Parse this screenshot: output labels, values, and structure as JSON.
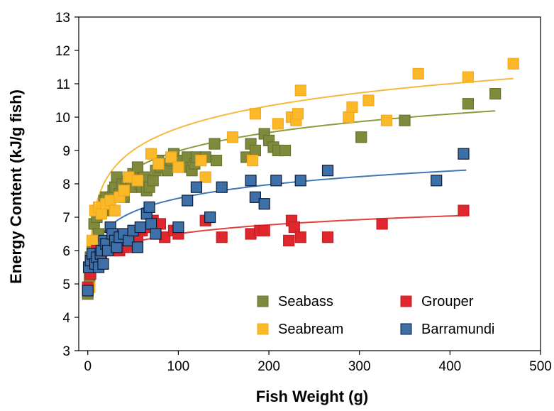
{
  "chart_data": {
    "type": "scatter",
    "xlabel": "Fish Weight (g)",
    "ylabel": "Energy Content (kJ/g fish)",
    "xlim": [
      -10,
      500
    ],
    "ylim": [
      3,
      13
    ],
    "xticks": [
      "0",
      "100",
      "200",
      "300",
      "400",
      "500"
    ],
    "yticks": [
      "3",
      "4",
      "5",
      "6",
      "7",
      "8",
      "9",
      "10",
      "11",
      "12",
      "13"
    ],
    "grid": false,
    "legend_position": "bottom-right",
    "series": [
      {
        "name": "Seabass",
        "color": "#808a3c",
        "edge": "#6a722e",
        "points": [
          [
            0,
            4.7
          ],
          [
            2,
            5.2
          ],
          [
            3,
            5.8
          ],
          [
            5,
            6.2
          ],
          [
            7,
            6.8
          ],
          [
            10,
            7.0
          ],
          [
            12,
            6.5
          ],
          [
            15,
            7.2
          ],
          [
            18,
            7.5
          ],
          [
            20,
            7.6
          ],
          [
            22,
            7.3
          ],
          [
            25,
            7.6
          ],
          [
            27,
            7.2
          ],
          [
            28,
            7.8
          ],
          [
            30,
            7.9
          ],
          [
            32,
            8.2
          ],
          [
            35,
            7.7
          ],
          [
            38,
            8.0
          ],
          [
            40,
            7.6
          ],
          [
            42,
            8.0
          ],
          [
            45,
            8.1
          ],
          [
            48,
            7.9
          ],
          [
            50,
            8.3
          ],
          [
            55,
            8.5
          ],
          [
            58,
            8.0
          ],
          [
            60,
            7.9
          ],
          [
            62,
            8.2
          ],
          [
            65,
            7.8
          ],
          [
            68,
            7.9
          ],
          [
            72,
            8.1
          ],
          [
            75,
            8.4
          ],
          [
            78,
            8.7
          ],
          [
            80,
            8.5
          ],
          [
            85,
            8.6
          ],
          [
            88,
            8.4
          ],
          [
            92,
            8.7
          ],
          [
            95,
            8.9
          ],
          [
            100,
            8.7
          ],
          [
            105,
            8.5
          ],
          [
            110,
            8.8
          ],
          [
            115,
            8.4
          ],
          [
            118,
            8.6
          ],
          [
            120,
            8.8
          ],
          [
            130,
            8.8
          ],
          [
            140,
            9.2
          ],
          [
            142,
            8.7
          ],
          [
            175,
            8.8
          ],
          [
            180,
            9.2
          ],
          [
            185,
            9.0
          ],
          [
            195,
            9.5
          ],
          [
            200,
            9.3
          ],
          [
            205,
            9.1
          ],
          [
            210,
            9.0
          ],
          [
            218,
            9.0
          ],
          [
            302,
            9.4
          ],
          [
            350,
            9.9
          ],
          [
            420,
            10.4
          ],
          [
            450,
            10.7
          ]
        ]
      },
      {
        "name": "Seabream",
        "color": "#fbb829",
        "edge": "#f4a81d",
        "points": [
          [
            2,
            4.9
          ],
          [
            5,
            6.3
          ],
          [
            8,
            7.2
          ],
          [
            12,
            7.3
          ],
          [
            15,
            7.1
          ],
          [
            20,
            7.4
          ],
          [
            25,
            7.5
          ],
          [
            30,
            7.2
          ],
          [
            35,
            7.6
          ],
          [
            40,
            7.8
          ],
          [
            45,
            8.2
          ],
          [
            55,
            8.1
          ],
          [
            70,
            8.9
          ],
          [
            78,
            8.6
          ],
          [
            92,
            8.8
          ],
          [
            100,
            8.5
          ],
          [
            125,
            8.7
          ],
          [
            130,
            8.2
          ],
          [
            160,
            9.4
          ],
          [
            182,
            8.7
          ],
          [
            185,
            10.1
          ],
          [
            210,
            9.8
          ],
          [
            225,
            10.0
          ],
          [
            230,
            9.9
          ],
          [
            232,
            10.1
          ],
          [
            235,
            10.8
          ],
          [
            288,
            10.0
          ],
          [
            292,
            10.3
          ],
          [
            310,
            10.5
          ],
          [
            330,
            9.9
          ],
          [
            365,
            11.3
          ],
          [
            420,
            11.2
          ],
          [
            470,
            11.6
          ]
        ]
      },
      {
        "name": "Grouper",
        "color": "#e0272d",
        "edge": "#c41e24",
        "points": [
          [
            0,
            4.9
          ],
          [
            3,
            5.3
          ],
          [
            7,
            5.6
          ],
          [
            10,
            6.0
          ],
          [
            15,
            5.7
          ],
          [
            20,
            6.1
          ],
          [
            25,
            6.0
          ],
          [
            30,
            6.2
          ],
          [
            35,
            6.0
          ],
          [
            40,
            6.3
          ],
          [
            45,
            6.1
          ],
          [
            50,
            6.5
          ],
          [
            55,
            6.4
          ],
          [
            60,
            6.6
          ],
          [
            65,
            6.7
          ],
          [
            72,
            6.9
          ],
          [
            80,
            6.8
          ],
          [
            85,
            6.4
          ],
          [
            95,
            6.6
          ],
          [
            100,
            6.5
          ],
          [
            130,
            6.9
          ],
          [
            148,
            6.4
          ],
          [
            180,
            6.5
          ],
          [
            190,
            6.6
          ],
          [
            195,
            6.6
          ],
          [
            222,
            6.3
          ],
          [
            225,
            6.9
          ],
          [
            228,
            6.7
          ],
          [
            235,
            6.4
          ],
          [
            265,
            6.4
          ],
          [
            325,
            6.8
          ],
          [
            415,
            7.2
          ]
        ]
      },
      {
        "name": "Barramundi",
        "color": "#3d6fa8",
        "edge": "#101a33",
        "points": [
          [
            0,
            4.8
          ],
          [
            1,
            5.5
          ],
          [
            3,
            5.7
          ],
          [
            5,
            5.9
          ],
          [
            8,
            5.6
          ],
          [
            10,
            5.8
          ],
          [
            12,
            5.5
          ],
          [
            14,
            5.9
          ],
          [
            15,
            6.0
          ],
          [
            17,
            5.6
          ],
          [
            18,
            6.3
          ],
          [
            20,
            6.2
          ],
          [
            22,
            6.0
          ],
          [
            25,
            6.7
          ],
          [
            27,
            6.5
          ],
          [
            30,
            6.3
          ],
          [
            32,
            6.1
          ],
          [
            35,
            6.4
          ],
          [
            40,
            6.5
          ],
          [
            45,
            6.3
          ],
          [
            50,
            6.6
          ],
          [
            55,
            6.1
          ],
          [
            58,
            6.7
          ],
          [
            65,
            7.1
          ],
          [
            68,
            7.3
          ],
          [
            70,
            6.8
          ],
          [
            75,
            6.5
          ],
          [
            100,
            6.7
          ],
          [
            110,
            7.5
          ],
          [
            120,
            7.9
          ],
          [
            135,
            7.0
          ],
          [
            148,
            7.9
          ],
          [
            180,
            8.1
          ],
          [
            185,
            7.6
          ],
          [
            195,
            7.4
          ],
          [
            208,
            8.1
          ],
          [
            235,
            8.1
          ],
          [
            265,
            8.4
          ],
          [
            385,
            8.1
          ],
          [
            415,
            8.9
          ]
        ]
      }
    ],
    "trendlines": [
      {
        "series": "Seabass",
        "color": "#8c9a3e",
        "a": 5.3,
        "b": 0.8,
        "x0": 1,
        "x1": 450
      },
      {
        "series": "Seabream",
        "color": "#f6b940",
        "a": 5.25,
        "b": 0.96,
        "x0": 1,
        "x1": 470
      },
      {
        "series": "Grouper",
        "color": "#e2403f",
        "a": 4.73,
        "b": 0.385,
        "x0": 1,
        "x1": 418
      },
      {
        "series": "Barramundi",
        "color": "#3f78b4",
        "a": 4.85,
        "b": 0.59,
        "x0": 1,
        "x1": 418
      }
    ],
    "legend": [
      {
        "name": "Seabass"
      },
      {
        "name": "Grouper"
      },
      {
        "name": "Seabream"
      },
      {
        "name": "Barramundi"
      }
    ]
  }
}
